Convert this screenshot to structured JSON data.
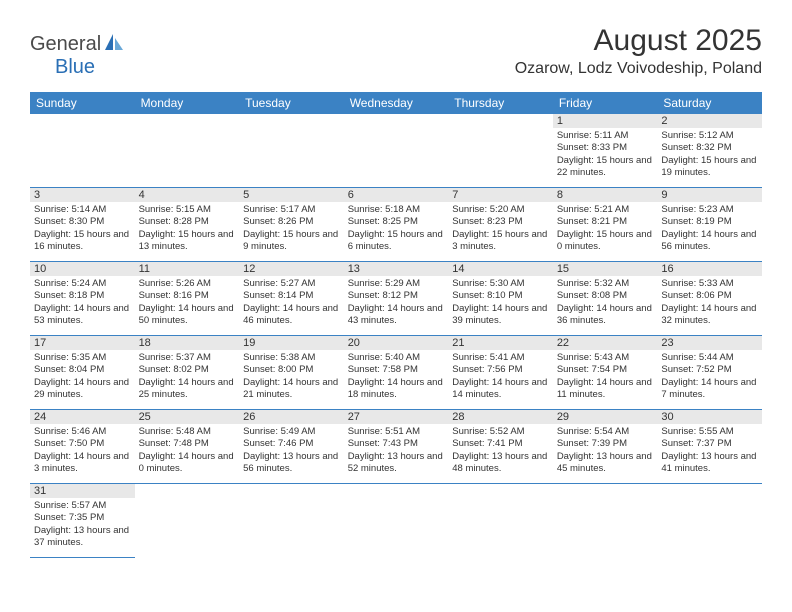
{
  "logo": {
    "text1": "General",
    "text2": "Blue"
  },
  "title": "August 2025",
  "location": "Ozarow, Lodz Voivodeship, Poland",
  "colors": {
    "header_bg": "#3b82c4",
    "header_text": "#ffffff",
    "daynum_bg": "#e8e8e8",
    "text": "#333333",
    "border": "#3b82c4",
    "logo_blue": "#2a6fb5"
  },
  "weekdays": [
    "Sunday",
    "Monday",
    "Tuesday",
    "Wednesday",
    "Thursday",
    "Friday",
    "Saturday"
  ],
  "weeks": [
    [
      null,
      null,
      null,
      null,
      null,
      {
        "n": "1",
        "sr": "5:11 AM",
        "ss": "8:33 PM",
        "dl": "15 hours and 22 minutes."
      },
      {
        "n": "2",
        "sr": "5:12 AM",
        "ss": "8:32 PM",
        "dl": "15 hours and 19 minutes."
      }
    ],
    [
      {
        "n": "3",
        "sr": "5:14 AM",
        "ss": "8:30 PM",
        "dl": "15 hours and 16 minutes."
      },
      {
        "n": "4",
        "sr": "5:15 AM",
        "ss": "8:28 PM",
        "dl": "15 hours and 13 minutes."
      },
      {
        "n": "5",
        "sr": "5:17 AM",
        "ss": "8:26 PM",
        "dl": "15 hours and 9 minutes."
      },
      {
        "n": "6",
        "sr": "5:18 AM",
        "ss": "8:25 PM",
        "dl": "15 hours and 6 minutes."
      },
      {
        "n": "7",
        "sr": "5:20 AM",
        "ss": "8:23 PM",
        "dl": "15 hours and 3 minutes."
      },
      {
        "n": "8",
        "sr": "5:21 AM",
        "ss": "8:21 PM",
        "dl": "15 hours and 0 minutes."
      },
      {
        "n": "9",
        "sr": "5:23 AM",
        "ss": "8:19 PM",
        "dl": "14 hours and 56 minutes."
      }
    ],
    [
      {
        "n": "10",
        "sr": "5:24 AM",
        "ss": "8:18 PM",
        "dl": "14 hours and 53 minutes."
      },
      {
        "n": "11",
        "sr": "5:26 AM",
        "ss": "8:16 PM",
        "dl": "14 hours and 50 minutes."
      },
      {
        "n": "12",
        "sr": "5:27 AM",
        "ss": "8:14 PM",
        "dl": "14 hours and 46 minutes."
      },
      {
        "n": "13",
        "sr": "5:29 AM",
        "ss": "8:12 PM",
        "dl": "14 hours and 43 minutes."
      },
      {
        "n": "14",
        "sr": "5:30 AM",
        "ss": "8:10 PM",
        "dl": "14 hours and 39 minutes."
      },
      {
        "n": "15",
        "sr": "5:32 AM",
        "ss": "8:08 PM",
        "dl": "14 hours and 36 minutes."
      },
      {
        "n": "16",
        "sr": "5:33 AM",
        "ss": "8:06 PM",
        "dl": "14 hours and 32 minutes."
      }
    ],
    [
      {
        "n": "17",
        "sr": "5:35 AM",
        "ss": "8:04 PM",
        "dl": "14 hours and 29 minutes."
      },
      {
        "n": "18",
        "sr": "5:37 AM",
        "ss": "8:02 PM",
        "dl": "14 hours and 25 minutes."
      },
      {
        "n": "19",
        "sr": "5:38 AM",
        "ss": "8:00 PM",
        "dl": "14 hours and 21 minutes."
      },
      {
        "n": "20",
        "sr": "5:40 AM",
        "ss": "7:58 PM",
        "dl": "14 hours and 18 minutes."
      },
      {
        "n": "21",
        "sr": "5:41 AM",
        "ss": "7:56 PM",
        "dl": "14 hours and 14 minutes."
      },
      {
        "n": "22",
        "sr": "5:43 AM",
        "ss": "7:54 PM",
        "dl": "14 hours and 11 minutes."
      },
      {
        "n": "23",
        "sr": "5:44 AM",
        "ss": "7:52 PM",
        "dl": "14 hours and 7 minutes."
      }
    ],
    [
      {
        "n": "24",
        "sr": "5:46 AM",
        "ss": "7:50 PM",
        "dl": "14 hours and 3 minutes."
      },
      {
        "n": "25",
        "sr": "5:48 AM",
        "ss": "7:48 PM",
        "dl": "14 hours and 0 minutes."
      },
      {
        "n": "26",
        "sr": "5:49 AM",
        "ss": "7:46 PM",
        "dl": "13 hours and 56 minutes."
      },
      {
        "n": "27",
        "sr": "5:51 AM",
        "ss": "7:43 PM",
        "dl": "13 hours and 52 minutes."
      },
      {
        "n": "28",
        "sr": "5:52 AM",
        "ss": "7:41 PM",
        "dl": "13 hours and 48 minutes."
      },
      {
        "n": "29",
        "sr": "5:54 AM",
        "ss": "7:39 PM",
        "dl": "13 hours and 45 minutes."
      },
      {
        "n": "30",
        "sr": "5:55 AM",
        "ss": "7:37 PM",
        "dl": "13 hours and 41 minutes."
      }
    ],
    [
      {
        "n": "31",
        "sr": "5:57 AM",
        "ss": "7:35 PM",
        "dl": "13 hours and 37 minutes."
      },
      null,
      null,
      null,
      null,
      null,
      null
    ]
  ],
  "labels": {
    "sunrise": "Sunrise:",
    "sunset": "Sunset:",
    "daylight": "Daylight:"
  }
}
